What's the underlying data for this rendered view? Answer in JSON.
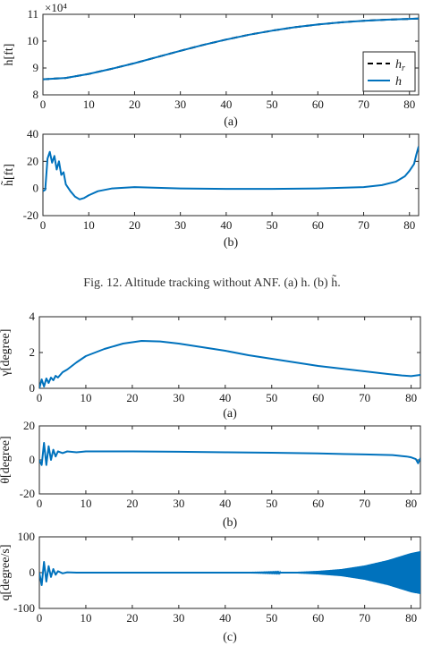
{
  "colors": {
    "h": "#0072bd",
    "h_r": "#000000",
    "axis": "#262626",
    "grid": "#ffffff"
  },
  "caption": "Fig. 12.    Altitude tracking without ANF. (a) h. (b) h̃.",
  "chart_data": [
    {
      "id": "alt",
      "type": "line",
      "ylabel": "h[ft]",
      "exponent": "×10⁴",
      "sublabel": "(a)",
      "xlim": [
        0,
        82
      ],
      "ylim": [
        8,
        11
      ],
      "xticks": [
        0,
        10,
        20,
        30,
        40,
        50,
        60,
        70,
        80
      ],
      "yticks": [
        8,
        9,
        10,
        11
      ],
      "legend": {
        "position": "bottom-right",
        "entries": [
          "h_r",
          "h"
        ]
      },
      "x": [
        0,
        5,
        10,
        15,
        20,
        25,
        30,
        35,
        40,
        45,
        50,
        55,
        60,
        65,
        70,
        75,
        82
      ],
      "series": [
        {
          "name": "h_r",
          "values": [
            8.58,
            8.63,
            8.78,
            8.97,
            9.18,
            9.41,
            9.64,
            9.86,
            10.06,
            10.24,
            10.39,
            10.52,
            10.62,
            10.7,
            10.76,
            10.8,
            10.84
          ]
        },
        {
          "name": "h",
          "values": [
            8.58,
            8.63,
            8.78,
            8.97,
            9.18,
            9.41,
            9.64,
            9.86,
            10.06,
            10.24,
            10.39,
            10.52,
            10.62,
            10.7,
            10.76,
            10.8,
            10.84
          ]
        }
      ]
    },
    {
      "id": "alterr",
      "type": "line",
      "ylabel": "h̃[ft]",
      "sublabel": "(b)",
      "xlim": [
        0,
        82
      ],
      "ylim": [
        -20,
        40
      ],
      "xticks": [
        0,
        10,
        20,
        30,
        40,
        50,
        60,
        70,
        80
      ],
      "yticks": [
        -20,
        0,
        20,
        40
      ],
      "x": [
        0,
        0.5,
        1,
        1.5,
        2,
        2.5,
        3,
        3.5,
        4,
        4.5,
        5,
        6,
        7,
        8,
        9,
        10,
        12,
        15,
        20,
        25,
        30,
        40,
        50,
        60,
        65,
        70,
        74,
        77,
        79,
        80,
        81,
        81.5,
        82
      ],
      "series": [
        {
          "name": "h̃",
          "values": [
            -2,
            -1,
            22,
            27,
            19,
            24,
            14,
            20,
            10,
            12,
            3,
            -2,
            -6,
            -8,
            -7,
            -5,
            -2,
            0,
            1,
            0.5,
            0,
            -0.3,
            -0.3,
            0,
            0.5,
            1,
            2.5,
            5,
            9,
            13,
            18,
            25,
            31
          ]
        }
      ]
    },
    {
      "id": "gamma",
      "type": "line",
      "ylabel": "γ[degree]",
      "sublabel": "(a)",
      "xlim": [
        0,
        82
      ],
      "ylim": [
        0,
        4
      ],
      "xticks": [
        0,
        10,
        20,
        30,
        40,
        50,
        60,
        70,
        80
      ],
      "yticks": [
        0,
        2,
        4
      ],
      "x": [
        0,
        0.5,
        1,
        1.5,
        2,
        2.5,
        3,
        3.5,
        4,
        5,
        6,
        8,
        10,
        14,
        18,
        22,
        26,
        30,
        35,
        40,
        45,
        50,
        55,
        60,
        65,
        70,
        75,
        78,
        80,
        82
      ],
      "series": [
        {
          "name": "γ",
          "values": [
            0,
            0.5,
            0.1,
            0.55,
            0.3,
            0.6,
            0.45,
            0.7,
            0.6,
            0.9,
            1.05,
            1.45,
            1.8,
            2.2,
            2.5,
            2.65,
            2.62,
            2.5,
            2.3,
            2.1,
            1.85,
            1.65,
            1.45,
            1.25,
            1.1,
            0.95,
            0.8,
            0.72,
            0.68,
            0.75
          ]
        }
      ]
    },
    {
      "id": "theta",
      "type": "line",
      "ylabel": "θ[degree]",
      "sublabel": "(b)",
      "xlim": [
        0,
        82
      ],
      "ylim": [
        -20,
        20
      ],
      "xticks": [
        0,
        10,
        20,
        30,
        40,
        50,
        60,
        70,
        80
      ],
      "yticks": [
        -20,
        0,
        20
      ],
      "x": [
        0,
        0.5,
        1,
        1.5,
        2,
        2.5,
        3,
        3.5,
        4,
        5,
        6,
        8,
        10,
        20,
        30,
        40,
        50,
        60,
        70,
        76,
        79,
        80,
        81,
        81.5,
        82
      ],
      "series": [
        {
          "name": "θ",
          "values": [
            0,
            -3,
            10,
            -3,
            8,
            0,
            6,
            2,
            5,
            4,
            5,
            4.5,
            5,
            5,
            4.8,
            4.5,
            4.2,
            3.8,
            3.2,
            2.8,
            2,
            1.5,
            0.5,
            -2,
            1
          ]
        }
      ]
    },
    {
      "id": "q",
      "type": "line",
      "ylabel": "q[degree/s]",
      "sublabel": "(c)",
      "xlim": [
        0,
        82
      ],
      "ylim": [
        -100,
        100
      ],
      "xticks": [
        0,
        10,
        20,
        30,
        40,
        50,
        60,
        70,
        80
      ],
      "yticks": [
        -100,
        0,
        100
      ],
      "x": [
        0,
        0.5,
        1,
        1.5,
        2,
        2.5,
        3,
        3.5,
        4,
        5,
        6,
        8,
        82
      ],
      "series": [
        {
          "name": "q",
          "values": [
            0,
            -35,
            30,
            -25,
            18,
            -12,
            10,
            -6,
            4,
            -2,
            1,
            0,
            0
          ]
        }
      ],
      "envelope": {
        "x": [
          45,
          55,
          60,
          65,
          70,
          75,
          80,
          82
        ],
        "amplitude": [
          0.5,
          2,
          5,
          10,
          20,
          35,
          55,
          60
        ]
      }
    }
  ]
}
